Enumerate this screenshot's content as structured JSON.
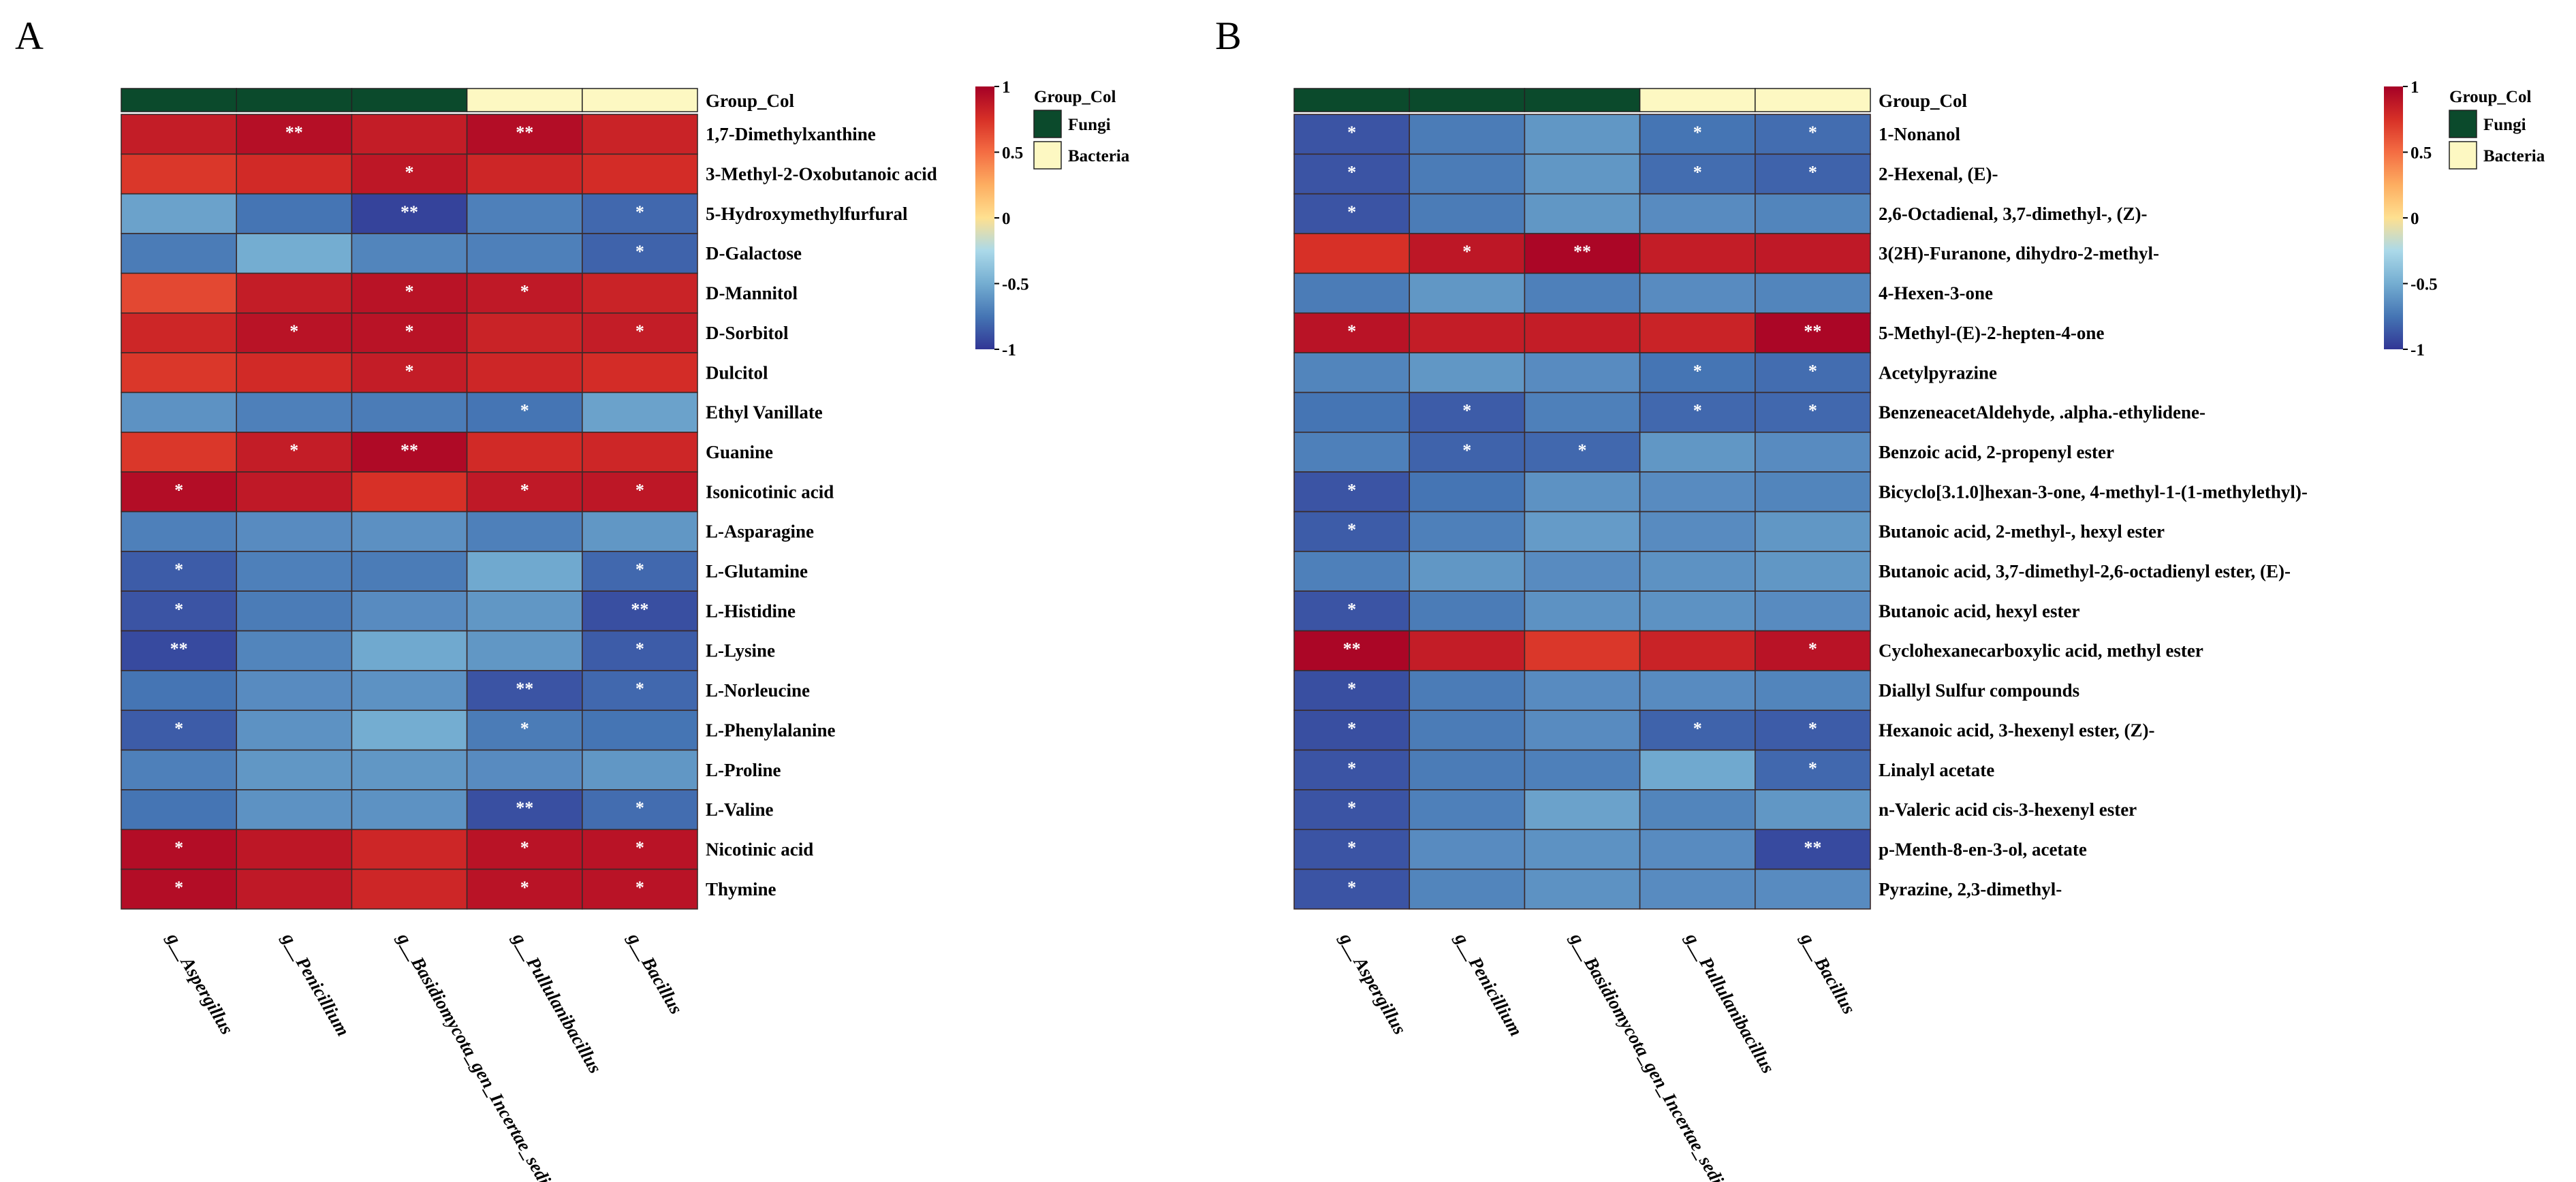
{
  "colors": {
    "fungi": "#0b4a2c",
    "bacteria": "#fdf8c2",
    "scale": [
      "#313695",
      "#4575b4",
      "#74add1",
      "#abd9e9",
      "#fee090",
      "#fdae61",
      "#f46d43",
      "#d73027",
      "#a50026"
    ]
  },
  "chart_data": [
    {
      "type": "heatmap",
      "panel": "A",
      "group_title": "Group_Col",
      "group_legend": [
        "Fungi",
        "Bacteria"
      ],
      "columns": [
        "g__Aspergillus",
        "g__Penicillium",
        "g__Basidiomycota_gen_Incertae_sedis",
        "g__Pullulanibacillus",
        "g__Bacillus"
      ],
      "column_groups": [
        "Fungi",
        "Fungi",
        "Fungi",
        "Bacteria",
        "Bacteria"
      ],
      "rows": [
        "1,7-Dimethylxanthine",
        "3-Methyl-2-Oxobutanoic acid",
        "5-Hydroxymethylfurfural",
        "D-Galactose",
        "D-Mannitol",
        "D-Sorbitol",
        "Dulcitol",
        "Ethyl  Vanillate",
        "Guanine",
        "Isonicotinic acid",
        "L-Asparagine",
        "L-Glutamine",
        "L-Histidine",
        "L-Lysine",
        "L-Norleucine",
        "L-Phenylalanine",
        "L-Proline",
        "L-Valine",
        "Nicotinic acid",
        "Thymine"
      ],
      "values": [
        [
          0.85,
          0.92,
          0.85,
          0.93,
          0.82
        ],
        [
          0.72,
          0.78,
          0.88,
          0.8,
          0.77
        ],
        [
          -0.55,
          -0.75,
          -0.95,
          -0.7,
          -0.8
        ],
        [
          -0.72,
          -0.5,
          -0.68,
          -0.7,
          -0.82
        ],
        [
          0.65,
          0.85,
          0.9,
          0.87,
          0.82
        ],
        [
          0.8,
          0.9,
          0.9,
          0.82,
          0.85
        ],
        [
          0.72,
          0.78,
          0.85,
          0.8,
          0.77
        ],
        [
          -0.62,
          -0.7,
          -0.72,
          -0.75,
          -0.55
        ],
        [
          0.72,
          0.85,
          0.95,
          0.78,
          0.8
        ],
        [
          0.93,
          0.87,
          0.75,
          0.87,
          0.88
        ],
        [
          -0.7,
          -0.65,
          -0.63,
          -0.7,
          -0.6
        ],
        [
          -0.85,
          -0.7,
          -0.72,
          -0.52,
          -0.8
        ],
        [
          -0.88,
          -0.72,
          -0.65,
          -0.6,
          -0.9
        ],
        [
          -0.92,
          -0.68,
          -0.52,
          -0.6,
          -0.85
        ],
        [
          -0.75,
          -0.65,
          -0.62,
          -0.88,
          -0.8
        ],
        [
          -0.85,
          -0.62,
          -0.5,
          -0.72,
          -0.75
        ],
        [
          -0.7,
          -0.6,
          -0.6,
          -0.65,
          -0.6
        ],
        [
          -0.75,
          -0.62,
          -0.62,
          -0.9,
          -0.78
        ],
        [
          0.93,
          0.88,
          0.8,
          0.9,
          0.9
        ],
        [
          0.93,
          0.87,
          0.8,
          0.9,
          0.9
        ]
      ],
      "significance": [
        [
          "",
          "**",
          "",
          "**",
          ""
        ],
        [
          "",
          "",
          "*",
          "",
          ""
        ],
        [
          "",
          "",
          "**",
          "",
          "*"
        ],
        [
          "",
          "",
          "",
          "",
          "*"
        ],
        [
          "",
          "",
          "*",
          "*",
          ""
        ],
        [
          "",
          "*",
          "*",
          "",
          "*"
        ],
        [
          "",
          "",
          "*",
          "",
          ""
        ],
        [
          "",
          "",
          "",
          "*",
          ""
        ],
        [
          "",
          "*",
          "**",
          "",
          ""
        ],
        [
          "*",
          "",
          "",
          "*",
          "*"
        ],
        [
          "",
          "",
          "",
          "",
          ""
        ],
        [
          "*",
          "",
          "",
          "",
          "*"
        ],
        [
          "*",
          "",
          "",
          "",
          "**"
        ],
        [
          "**",
          "",
          "",
          "",
          "*"
        ],
        [
          "",
          "",
          "",
          "**",
          "*"
        ],
        [
          "*",
          "",
          "",
          "*",
          ""
        ],
        [
          "",
          "",
          "",
          "",
          ""
        ],
        [
          "",
          "",
          "",
          "**",
          "*"
        ],
        [
          "*",
          "",
          "",
          "*",
          "*"
        ],
        [
          "*",
          "",
          "",
          "*",
          "*"
        ]
      ],
      "scale_range": [
        -1,
        1
      ],
      "scale_ticks": [
        "1",
        "0.5",
        "0",
        "-0.5",
        "-1"
      ]
    },
    {
      "type": "heatmap",
      "panel": "B",
      "group_title": "Group_Col",
      "group_legend": [
        "Fungi",
        "Bacteria"
      ],
      "columns": [
        "g__Aspergillus",
        "g__Penicillium",
        "g__Basidiomycota_gen_Incertae_sedis",
        "g__Pullulanibacillus",
        "g__Bacillus"
      ],
      "column_groups": [
        "Fungi",
        "Fungi",
        "Fungi",
        "Bacteria",
        "Bacteria"
      ],
      "rows": [
        "1-Nonanol",
        "2-Hexenal, (E)-",
        "2,6-Octadienal, 3,7-dimethyl-, (Z)-",
        "3(2H)-Furanone, dihydro-2-methyl-",
        "4-Hexen-3-one",
        "5-Methyl-(E)-2-hepten-4-one",
        "Acetylpyrazine",
        "BenzeneacetAldehyde, .alpha.-ethylidene-",
        "Benzoic acid, 2-propenyl ester",
        "Bicyclo[3.1.0]hexan-3-one, 4-methyl-1-(1-methylethyl)-",
        "Butanoic acid, 2-methyl-, hexyl ester",
        "Butanoic acid, 3,7-dimethyl-2,6-octadienyl ester, (E)-",
        "Butanoic acid, hexyl ester",
        "Cyclohexanecarboxylic acid, methyl ester",
        "Diallyl Sulfur compounds",
        "Hexanoic acid, 3-hexenyl ester, (Z)-",
        "Linalyl acetate",
        "n-Valeric acid cis-3-hexenyl ester",
        "p-Menth-8-en-3-ol, acetate",
        "Pyrazine, 2,3-dimethyl-"
      ],
      "values": [
        [
          -0.88,
          -0.72,
          -0.6,
          -0.75,
          -0.78
        ],
        [
          -0.88,
          -0.72,
          -0.6,
          -0.78,
          -0.82
        ],
        [
          -0.88,
          -0.72,
          -0.6,
          -0.65,
          -0.68
        ],
        [
          0.75,
          0.88,
          0.97,
          0.85,
          0.87
        ],
        [
          -0.72,
          -0.6,
          -0.7,
          -0.65,
          -0.68
        ],
        [
          0.9,
          0.85,
          0.85,
          0.82,
          0.97
        ],
        [
          -0.68,
          -0.6,
          -0.65,
          -0.75,
          -0.78
        ],
        [
          -0.75,
          -0.85,
          -0.7,
          -0.8,
          -0.8
        ],
        [
          -0.7,
          -0.82,
          -0.8,
          -0.6,
          -0.65
        ],
        [
          -0.88,
          -0.75,
          -0.62,
          -0.65,
          -0.68
        ],
        [
          -0.85,
          -0.7,
          -0.58,
          -0.65,
          -0.6
        ],
        [
          -0.7,
          -0.6,
          -0.65,
          -0.62,
          -0.6
        ],
        [
          -0.88,
          -0.72,
          -0.62,
          -0.62,
          -0.65
        ],
        [
          0.97,
          0.85,
          0.72,
          0.82,
          0.9
        ],
        [
          -0.9,
          -0.72,
          -0.65,
          -0.65,
          -0.68
        ],
        [
          -0.9,
          -0.72,
          -0.65,
          -0.82,
          -0.85
        ],
        [
          -0.88,
          -0.72,
          -0.7,
          -0.52,
          -0.8
        ],
        [
          -0.88,
          -0.7,
          -0.55,
          -0.68,
          -0.6
        ],
        [
          -0.88,
          -0.65,
          -0.62,
          -0.65,
          -0.92
        ],
        [
          -0.88,
          -0.68,
          -0.62,
          -0.65,
          -0.65
        ]
      ],
      "significance": [
        [
          "*",
          "",
          "",
          "*",
          "*"
        ],
        [
          "*",
          "",
          "",
          "*",
          "*"
        ],
        [
          "*",
          "",
          "",
          "",
          ""
        ],
        [
          "",
          "*",
          "**",
          "",
          ""
        ],
        [
          "",
          "",
          "",
          "",
          ""
        ],
        [
          "*",
          "",
          "",
          "",
          "**"
        ],
        [
          "",
          "",
          "",
          "*",
          "*"
        ],
        [
          "",
          "*",
          "",
          "*",
          "*"
        ],
        [
          "",
          "*",
          "*",
          "",
          ""
        ],
        [
          "*",
          "",
          "",
          "",
          ""
        ],
        [
          "*",
          "",
          "",
          "",
          ""
        ],
        [
          "",
          "",
          "",
          "",
          ""
        ],
        [
          "*",
          "",
          "",
          "",
          ""
        ],
        [
          "**",
          "",
          "",
          "",
          "*"
        ],
        [
          "*",
          "",
          "",
          "",
          ""
        ],
        [
          "*",
          "",
          "",
          "*",
          "*"
        ],
        [
          "*",
          "",
          "",
          "",
          "*"
        ],
        [
          "*",
          "",
          "",
          "",
          ""
        ],
        [
          "*",
          "",
          "",
          "",
          "**"
        ],
        [
          "*",
          "",
          "",
          "",
          ""
        ]
      ],
      "scale_range": [
        -1,
        1
      ],
      "scale_ticks": [
        "1",
        "0.5",
        "0",
        "-0.5",
        "-1"
      ]
    }
  ]
}
